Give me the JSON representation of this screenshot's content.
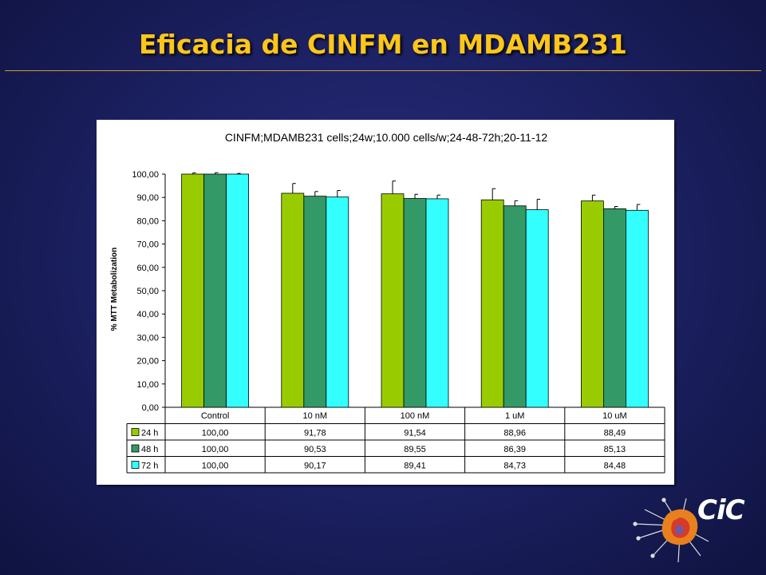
{
  "slide": {
    "title": "Eficacia de CINFM en MDAMB231"
  },
  "logo": {
    "text": "CiC"
  },
  "colors": {
    "24 h": "#99cc00",
    "48 h": "#339966",
    "72 h": "#33ffff",
    "plot_background": "#ffffff",
    "frame_background": "#ffffff"
  },
  "chart_data": {
    "type": "bar",
    "title": "CINFM;MDAMB231 cells;24w;10.000 cells/w;24-48-72h;20-11-12",
    "xlabel": "",
    "ylabel": "% MTT Metabolization",
    "ylim": [
      0,
      100
    ],
    "ytick_step": 10,
    "ytick_labels": [
      "0,00",
      "10,00",
      "20,00",
      "30,00",
      "40,00",
      "50,00",
      "60,00",
      "70,00",
      "80,00",
      "90,00",
      "100,00"
    ],
    "grid": false,
    "legend": "data-table",
    "categories": [
      "Control",
      "10 nM",
      "100 nM",
      "1 uM",
      "10 uM"
    ],
    "series": [
      {
        "name": "24 h",
        "values": [
          100.0,
          91.78,
          91.54,
          88.96,
          88.49
        ],
        "errors": [
          0.5,
          4.2,
          5.5,
          4.8,
          2.5
        ],
        "labels": [
          "100,00",
          "91,78",
          "91,54",
          "88,96",
          "88,49"
        ]
      },
      {
        "name": "48 h",
        "values": [
          100.0,
          90.53,
          89.55,
          86.39,
          85.13
        ],
        "errors": [
          0.6,
          2.0,
          1.8,
          2.2,
          1.0
        ],
        "labels": [
          "100,00",
          "90,53",
          "89,55",
          "86,39",
          "85,13"
        ]
      },
      {
        "name": "72 h",
        "values": [
          100.0,
          90.17,
          89.41,
          84.73,
          84.48
        ],
        "errors": [
          0.3,
          2.8,
          1.6,
          4.5,
          2.5
        ],
        "labels": [
          "100,00",
          "90,17",
          "89,41",
          "84,73",
          "84,48"
        ]
      }
    ]
  }
}
